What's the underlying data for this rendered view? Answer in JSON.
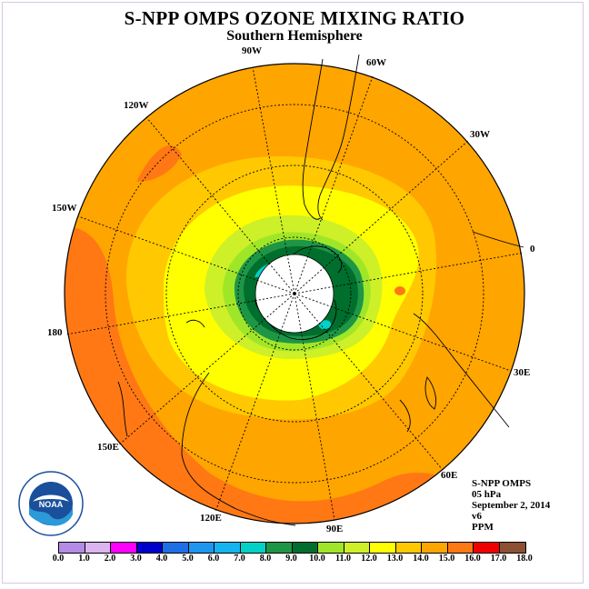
{
  "title": "S-NPP OMPS OZONE MIXING RATIO",
  "subtitle": "Southern Hemisphere",
  "longitude_labels": [
    "90W",
    "60W",
    "30W",
    "0",
    "30E",
    "60E",
    "90E",
    "120E",
    "150E",
    "180",
    "150W",
    "120W"
  ],
  "info": {
    "instrument": "S-NPP OMPS",
    "level": "05 hPa",
    "date": "September 2, 2014",
    "version": "v6",
    "units": "PPM"
  },
  "logo_text": "NOAA",
  "colorbar": {
    "ticks": [
      "0.0",
      "1.0",
      "2.0",
      "3.0",
      "4.0",
      "5.0",
      "6.0",
      "7.0",
      "8.0",
      "9.0",
      "10.0",
      "11.0",
      "12.0",
      "13.0",
      "14.0",
      "15.0",
      "16.0",
      "17.0",
      "18.0"
    ],
    "colors": [
      "#b48ce6",
      "#dcb4f0",
      "#ff00ff",
      "#0000cd",
      "#1e6fe6",
      "#1e96f0",
      "#14b4f0",
      "#00d2c8",
      "#1e9646",
      "#006e2d",
      "#a0e628",
      "#cdf028",
      "#ffff00",
      "#ffc800",
      "#ffa500",
      "#ff7814",
      "#f00000",
      "#8c5032"
    ]
  }
}
